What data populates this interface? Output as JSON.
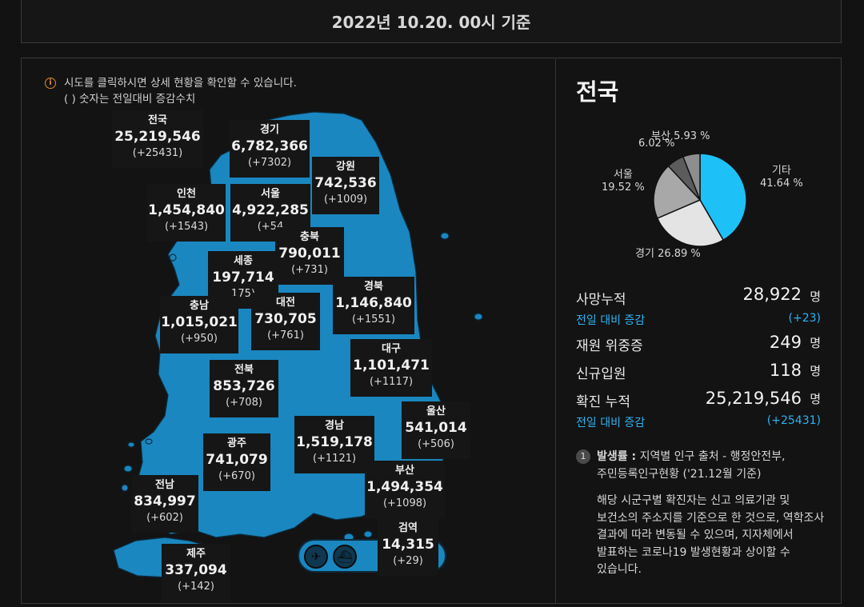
{
  "header": {
    "date": "2022년 10.20. 00시 기준"
  },
  "notice": {
    "line1": "시도를 클릭하시면 상세 현황을 확인할 수 있습니다.",
    "line2": "( ) 숫자는 전일대비 증감수치",
    "icon": "info-icon"
  },
  "regions": {
    "national": {
      "name": "전국",
      "value": "25,219,546",
      "diff": "(+25431)"
    },
    "gyeonggi": {
      "name": "경기",
      "value": "6,782,366",
      "diff": "(+7302)"
    },
    "gangwon": {
      "name": "강원",
      "value": "742,536",
      "diff": "(+1009)"
    },
    "incheon": {
      "name": "인천",
      "value": "1,454,840",
      "diff": "(+1543)"
    },
    "seoul": {
      "name": "서울",
      "value": "4,922,285",
      "diff": "(+54"
    },
    "chungbuk": {
      "name": "충북",
      "value": "790,011",
      "diff": "(+731)"
    },
    "sejong": {
      "name": "세종",
      "value": "197,714",
      "diff": "175)"
    },
    "gyeongbuk": {
      "name": "경북",
      "value": "1,146,840",
      "diff": "(+1551)"
    },
    "chungnam": {
      "name": "충남",
      "value": "1,015,021",
      "diff": "(+950)"
    },
    "daejeon": {
      "name": "대전",
      "value": "730,705",
      "diff": "(+761)"
    },
    "daegu": {
      "name": "대구",
      "value": "1,101,471",
      "diff": "(+1117)"
    },
    "jeonbuk": {
      "name": "전북",
      "value": "853,726",
      "diff": "(+708)"
    },
    "ulsan": {
      "name": "울산",
      "value": "541,014",
      "diff": "(+506)"
    },
    "gyeongnam": {
      "name": "경남",
      "value": "1,519,178",
      "diff": "(+1121)"
    },
    "gwangju": {
      "name": "광주",
      "value": "741,079",
      "diff": "(+670)"
    },
    "busan": {
      "name": "부산",
      "value": "1,494,354",
      "diff": "(+1098)"
    },
    "jeonnam": {
      "name": "전남",
      "value": "834,997",
      "diff": "(+602)"
    },
    "quarantine": {
      "name": "검역",
      "value": "14,315",
      "diff": "(+29)"
    },
    "jeju": {
      "name": "제주",
      "value": "337,094",
      "diff": "(+142)"
    }
  },
  "quarantine_icons": [
    "airplane-icon",
    "ship-icon"
  ],
  "right": {
    "title": "전국",
    "pie": {
      "type": "pie",
      "slices": [
        {
          "label": "기타",
          "value": 41.64,
          "text": "41.64 %",
          "color": "#1ec0f8"
        },
        {
          "label": "경기",
          "value": 26.89,
          "text": "26.89 %",
          "color": "#e4e4e4"
        },
        {
          "label": "서울",
          "value": 19.52,
          "text": "19.52 %",
          "color": "#a8a8a8"
        },
        {
          "label": "",
          "value": 6.02,
          "text": "6.02 %",
          "color": "#5c5c5c"
        },
        {
          "label": "부산",
          "value": 5.93,
          "text": "5.93 %",
          "color": "#8e8e8e"
        }
      ]
    },
    "stats": {
      "death_label": "사망누적",
      "death_value": "28,922",
      "death_unit": "명",
      "death_diff_label": "전일 대비 증감",
      "death_diff": "(+23)",
      "critical_label": "재원 위중증",
      "critical_value": "249",
      "critical_unit": "명",
      "admit_label": "신규입원",
      "admit_value": "118",
      "admit_unit": "명",
      "confirm_label": "확진 누적",
      "confirm_value": "25,219,546",
      "confirm_unit": "명",
      "confirm_diff_label": "전일 대비 증감",
      "confirm_diff": "(+25431)"
    },
    "footnote": {
      "num": "1",
      "bold": "발생률 :",
      "text1": "지역별 인구 출처 - 행정안전부,",
      "text2": "주민등록인구현황 ('21.12월 기준)",
      "p1": "해당 시군구별 확진자는 신고 의료기관 및",
      "p2": "보건소의 주소지를 기준으로 한 것으로, 역학조사",
      "p3": "결과에 따라 변동될 수 있으며, 지자체에서",
      "p4": "발표하는 코로나19 발생현황과 상이할 수",
      "p5": "있습니다."
    }
  }
}
